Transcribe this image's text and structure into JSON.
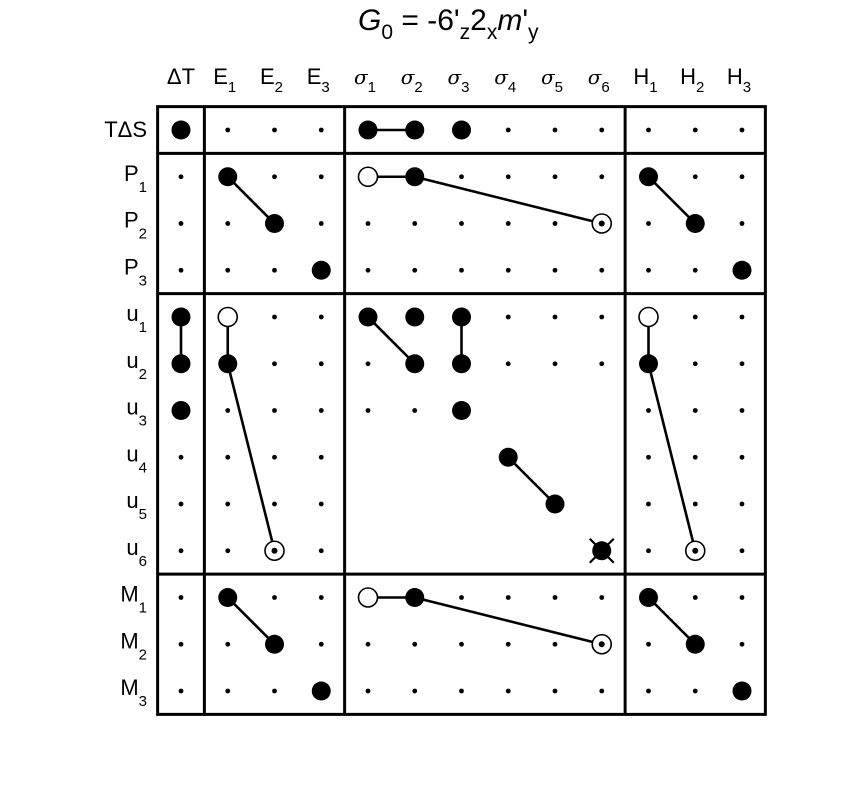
{
  "title": {
    "prefix": "G",
    "prefix_sub": "0",
    "eq": " = -6'",
    "s1": "z",
    "mid": "2",
    "s2": "x",
    "m": "m",
    "prime": "'",
    "s3": "y"
  },
  "columns": [
    {
      "main": "ΔT",
      "sub": "",
      "greek": false
    },
    {
      "main": "E",
      "sub": "1",
      "greek": false
    },
    {
      "main": "E",
      "sub": "2",
      "greek": false
    },
    {
      "main": "E",
      "sub": "3",
      "greek": false
    },
    {
      "main": "σ",
      "sub": "1",
      "greek": true
    },
    {
      "main": "σ",
      "sub": "2",
      "greek": true
    },
    {
      "main": "σ",
      "sub": "3",
      "greek": true
    },
    {
      "main": "σ",
      "sub": "4",
      "greek": true
    },
    {
      "main": "σ",
      "sub": "5",
      "greek": true
    },
    {
      "main": "σ",
      "sub": "6",
      "greek": true
    },
    {
      "main": "H",
      "sub": "1",
      "greek": false
    },
    {
      "main": "H",
      "sub": "2",
      "greek": false
    },
    {
      "main": "H",
      "sub": "3",
      "greek": false
    }
  ],
  "rows": [
    {
      "main": "TΔS",
      "sub": ""
    },
    {
      "main": "P",
      "sub": "1"
    },
    {
      "main": "P",
      "sub": "2"
    },
    {
      "main": "P",
      "sub": "3"
    },
    {
      "main": "u",
      "sub": "1"
    },
    {
      "main": "u",
      "sub": "2"
    },
    {
      "main": "u",
      "sub": "3"
    },
    {
      "main": "u",
      "sub": "4"
    },
    {
      "main": "u",
      "sub": "5"
    },
    {
      "main": "u",
      "sub": "6"
    },
    {
      "main": "M",
      "sub": "1"
    },
    {
      "main": "M",
      "sub": "2"
    },
    {
      "main": "M",
      "sub": "3"
    }
  ],
  "column_groups": [
    [
      0,
      0
    ],
    [
      1,
      3
    ],
    [
      4,
      9
    ],
    [
      10,
      12
    ]
  ],
  "row_groups": [
    [
      0,
      0
    ],
    [
      1,
      3
    ],
    [
      4,
      9
    ],
    [
      10,
      12
    ]
  ],
  "blank_cells": [
    [
      6,
      7
    ],
    [
      6,
      8
    ],
    [
      6,
      9
    ],
    [
      7,
      4
    ],
    [
      7,
      5
    ],
    [
      7,
      6
    ],
    [
      7,
      8
    ],
    [
      7,
      9
    ],
    [
      8,
      4
    ],
    [
      8,
      5
    ],
    [
      8,
      6
    ],
    [
      8,
      7
    ],
    [
      8,
      9
    ],
    [
      9,
      4
    ],
    [
      9,
      5
    ],
    [
      9,
      6
    ],
    [
      9,
      7
    ],
    [
      9,
      8
    ]
  ],
  "filled_cells": [
    [
      0,
      0
    ],
    [
      0,
      4
    ],
    [
      0,
      5
    ],
    [
      0,
      6
    ],
    [
      1,
      1
    ],
    [
      1,
      5
    ],
    [
      1,
      10
    ],
    [
      2,
      2
    ],
    [
      2,
      11
    ],
    [
      3,
      3
    ],
    [
      3,
      12
    ],
    [
      4,
      0
    ],
    [
      4,
      4
    ],
    [
      4,
      5
    ],
    [
      4,
      6
    ],
    [
      5,
      0
    ],
    [
      5,
      1
    ],
    [
      5,
      5
    ],
    [
      5,
      6
    ],
    [
      5,
      10
    ],
    [
      6,
      0
    ],
    [
      6,
      6
    ],
    [
      7,
      7
    ],
    [
      8,
      8
    ],
    [
      10,
      1
    ],
    [
      10,
      5
    ],
    [
      10,
      10
    ],
    [
      11,
      2
    ],
    [
      11,
      11
    ],
    [
      12,
      3
    ],
    [
      12,
      12
    ]
  ],
  "open_cells": [
    [
      1,
      4
    ],
    [
      4,
      1
    ],
    [
      4,
      10
    ],
    [
      10,
      4
    ]
  ],
  "dotted_circle_cells": [
    [
      2,
      9
    ],
    [
      9,
      2
    ],
    [
      9,
      11
    ],
    [
      11,
      9
    ]
  ],
  "crossed_cells": [
    [
      9,
      9
    ]
  ],
  "connections": [
    [
      [
        0,
        4
      ],
      [
        0,
        5
      ]
    ],
    [
      [
        1,
        1
      ],
      [
        2,
        2
      ]
    ],
    [
      [
        1,
        4
      ],
      [
        1,
        5
      ]
    ],
    [
      [
        1,
        5
      ],
      [
        2,
        9
      ]
    ],
    [
      [
        1,
        10
      ],
      [
        2,
        11
      ]
    ],
    [
      [
        4,
        0
      ],
      [
        5,
        0
      ]
    ],
    [
      [
        4,
        1
      ],
      [
        5,
        1
      ]
    ],
    [
      [
        5,
        1
      ],
      [
        9,
        2
      ]
    ],
    [
      [
        4,
        4
      ],
      [
        5,
        5
      ]
    ],
    [
      [
        4,
        6
      ],
      [
        5,
        6
      ]
    ],
    [
      [
        4,
        10
      ],
      [
        5,
        10
      ]
    ],
    [
      [
        5,
        10
      ],
      [
        9,
        11
      ]
    ],
    [
      [
        7,
        7
      ],
      [
        8,
        8
      ]
    ],
    [
      [
        10,
        1
      ],
      [
        11,
        2
      ]
    ],
    [
      [
        10,
        4
      ],
      [
        10,
        5
      ]
    ],
    [
      [
        10,
        5
      ],
      [
        11,
        9
      ]
    ],
    [
      [
        10,
        10
      ],
      [
        11,
        11
      ]
    ]
  ]
}
